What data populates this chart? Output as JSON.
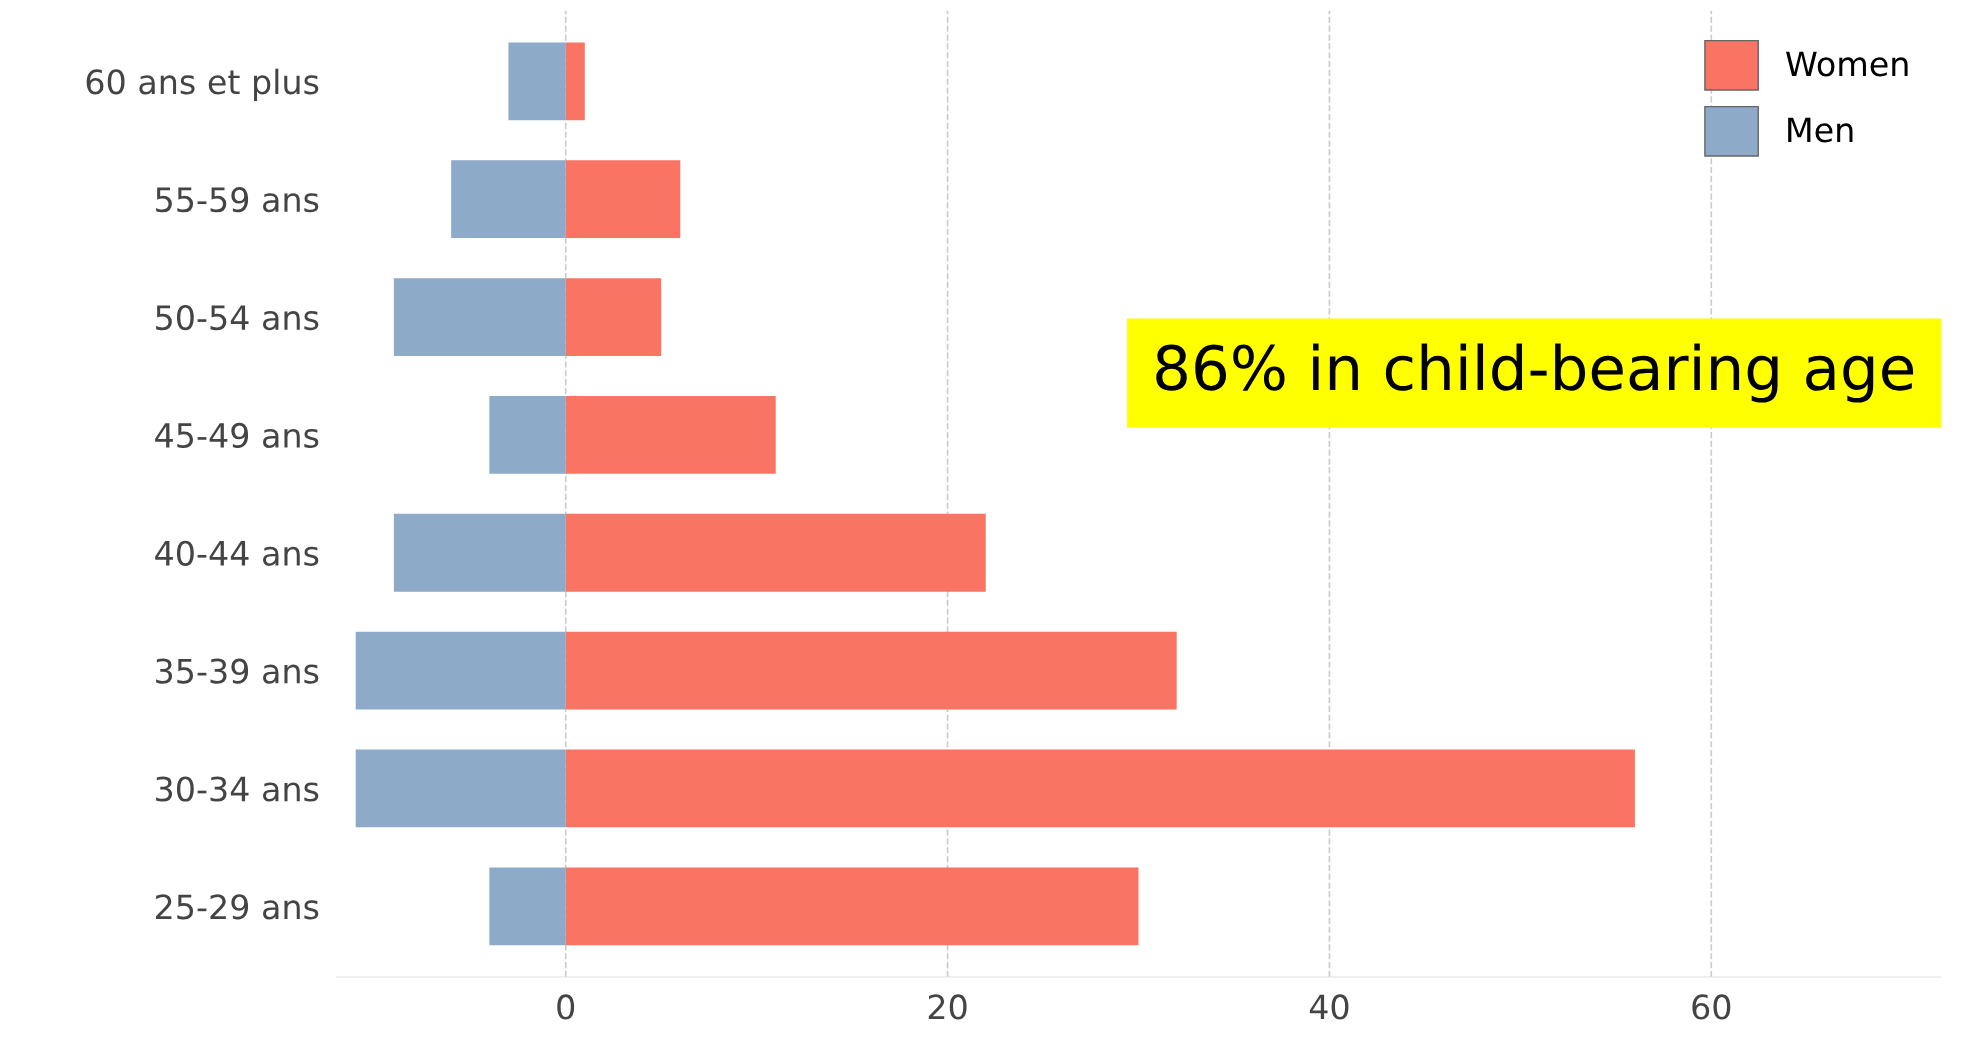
{
  "chart_data": {
    "type": "bar",
    "orientation": "horizontal",
    "stacked": true,
    "categories": [
      "60 ans et plus",
      "55-59 ans",
      "50-54 ans",
      "45-49 ans",
      "40-44 ans",
      "35-39 ans",
      "30-34 ans",
      "25-29 ans"
    ],
    "series": [
      {
        "name": "Women",
        "color": "#fa7464",
        "values": [
          1,
          6,
          5,
          11,
          22,
          32,
          56,
          30
        ]
      },
      {
        "name": "Men",
        "color": "#8eaac9",
        "values": [
          -3,
          -6,
          -9,
          -4,
          -9,
          -11,
          -11,
          -4
        ]
      }
    ],
    "xlim": [
      -12,
      72
    ],
    "xticks": [
      0,
      20,
      40,
      60
    ],
    "grid": "x",
    "legend": "top right",
    "annotations": [
      "86% in child-bearing age"
    ]
  }
}
